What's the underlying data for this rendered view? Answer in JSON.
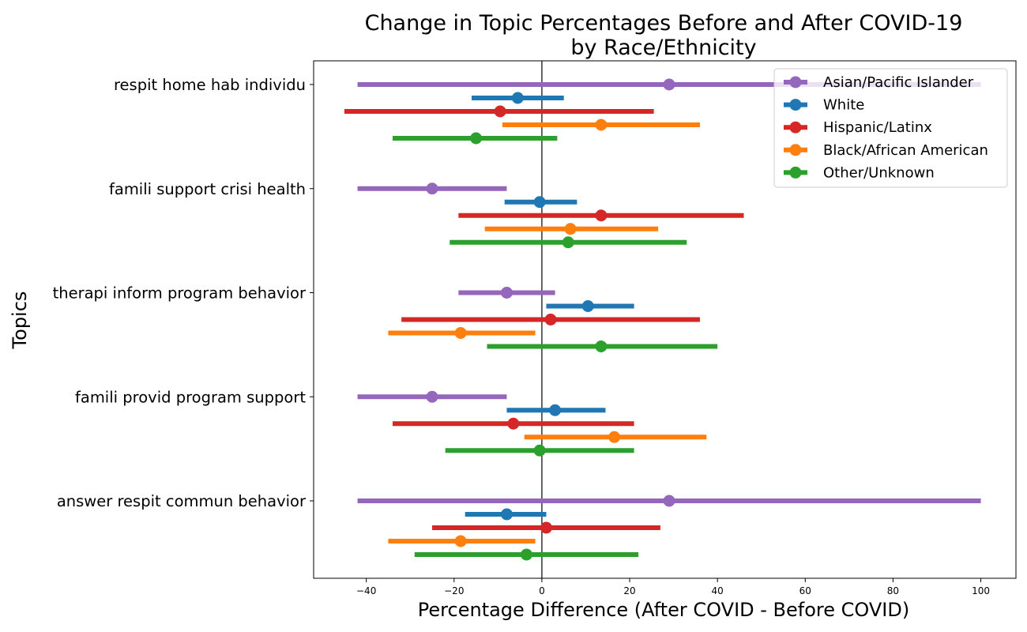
{
  "chart_data": {
    "type": "dot-interval",
    "title_line1": "Change in Topic Percentages Before and After COVID-19",
    "title_line2": "by Race/Ethnicity",
    "xlabel": "Percentage Difference (After COVID - Before COVID)",
    "ylabel": "Topics",
    "xlim": [
      -52,
      108
    ],
    "xticks": [
      -40,
      -20,
      0,
      20,
      40,
      60,
      80,
      100
    ],
    "reference_line_x": 0,
    "legend_position": "top-right",
    "topics": [
      "respit home hab individu",
      "famili support crisi health",
      "therapi inform program behavior",
      "famili provid program support",
      "answer respit commun behavior"
    ],
    "series": [
      {
        "name": "Asian/Pacific Islander",
        "color": "#9467bd",
        "points": [
          {
            "value": 29,
            "low": -42,
            "high": 100
          },
          {
            "value": -25,
            "low": -42,
            "high": -8
          },
          {
            "value": -8,
            "low": -19,
            "high": 3
          },
          {
            "value": -25,
            "low": -42,
            "high": -8
          },
          {
            "value": 29,
            "low": -42,
            "high": 100
          }
        ]
      },
      {
        "name": "White",
        "color": "#1f77b4",
        "points": [
          {
            "value": -5.5,
            "low": -16,
            "high": 5
          },
          {
            "value": -0.5,
            "low": -8.5,
            "high": 8
          },
          {
            "value": 10.5,
            "low": 1,
            "high": 21
          },
          {
            "value": 3,
            "low": -8,
            "high": 14.5
          },
          {
            "value": -8,
            "low": -17.5,
            "high": 1
          }
        ]
      },
      {
        "name": "Hispanic/Latinx",
        "color": "#d62728",
        "points": [
          {
            "value": -9.5,
            "low": -45,
            "high": 25.5
          },
          {
            "value": 13.5,
            "low": -19,
            "high": 46
          },
          {
            "value": 2,
            "low": -32,
            "high": 36
          },
          {
            "value": -6.5,
            "low": -34,
            "high": 21
          },
          {
            "value": 1,
            "low": -25,
            "high": 27
          }
        ]
      },
      {
        "name": "Black/African American",
        "color": "#ff7f0e",
        "points": [
          {
            "value": 13.5,
            "low": -9,
            "high": 36
          },
          {
            "value": 6.5,
            "low": -13,
            "high": 26.5
          },
          {
            "value": -18.5,
            "low": -35,
            "high": -1.5
          },
          {
            "value": 16.5,
            "low": -4,
            "high": 37.5
          },
          {
            "value": -18.5,
            "low": -35,
            "high": -1.5
          }
        ]
      },
      {
        "name": "Other/Unknown",
        "color": "#2ca02c",
        "points": [
          {
            "value": -15,
            "low": -34,
            "high": 3.5
          },
          {
            "value": 6,
            "low": -21,
            "high": 33
          },
          {
            "value": 13.5,
            "low": -12.5,
            "high": 40
          },
          {
            "value": -0.5,
            "low": -22,
            "high": 21
          },
          {
            "value": -3.5,
            "low": -29,
            "high": 22
          }
        ]
      }
    ]
  }
}
